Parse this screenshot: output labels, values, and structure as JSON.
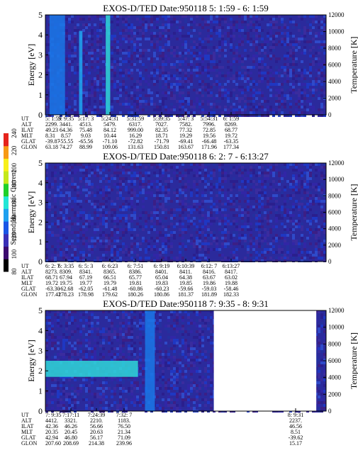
{
  "chart_data": [
    {
      "type": "heatmap",
      "title": "EXOS-D/TED   Date:950118  5: 1:59 - 6: 1:59",
      "ylabel": "Energy [eV]",
      "y2label": "Temperature [K]",
      "ylim": [
        0,
        5
      ],
      "y2lim": [
        0,
        12000
      ],
      "yticks": [
        "0",
        "1",
        "2",
        "3",
        "4",
        "5"
      ],
      "y2ticks": [
        "0",
        "2000",
        "4000",
        "6000",
        "8000",
        "10000",
        "12000"
      ],
      "row_labels": [
        "UT",
        "ALT",
        "ILAT",
        "MLT",
        "GLAT",
        "GLON"
      ],
      "columns": [
        [
          "5: 1:59",
          "2299.",
          "49.23",
          "8.31",
          "-39.87",
          "63.18"
        ],
        [
          "5: 9:35",
          "3441.",
          "64.36",
          "8.57",
          "-55.55",
          "74.27"
        ],
        [
          "5:17: 3",
          "4513.",
          "75.48",
          "9.03",
          "-65.56",
          "88.99"
        ],
        [
          "5:24:31",
          "5479.",
          "84.12",
          "10.44",
          "-71.10",
          "109.06"
        ],
        [
          "5:31:59",
          "6317.",
          "999.00",
          "16.29",
          "-72.82",
          "131.63"
        ],
        [
          "5:39:35",
          "7027.",
          "82.35",
          "18.71",
          "-71.79",
          "150.81"
        ],
        [
          "5:47: 3",
          "7582.",
          "77.32",
          "19.29",
          "-69.41",
          "163.67"
        ],
        [
          "5:54:31",
          "7996.",
          "72.85",
          "19.56",
          "-66.48",
          "171.96"
        ],
        [
          "6: 1:59",
          "8269.",
          "68.77",
          "19.72",
          "-63.35",
          "177.34"
        ]
      ],
      "features": [
        {
          "x_frac": 0.015,
          "width_frac": 0.055,
          "energy_top": 5.0,
          "level": 0.55
        },
        {
          "x_frac": 0.12,
          "width_frac": 0.012,
          "energy_top": 4.2,
          "level": 0.7
        },
        {
          "x_frac": 0.215,
          "width_frac": 0.016,
          "energy_top": 5.0,
          "level": 0.75
        }
      ]
    },
    {
      "type": "heatmap",
      "title": "EXOS-D/TED   Date:950118  6: 2: 7 - 6:13:27",
      "ylabel": "Energy [eV]",
      "y2label": "Temperature [K]",
      "ylim": [
        0,
        5
      ],
      "y2lim": [
        0,
        12000
      ],
      "yticks": [
        "0",
        "1",
        "2",
        "3",
        "4",
        "5"
      ],
      "y2ticks": [
        "0",
        "2000",
        "4000",
        "6000",
        "8000",
        "10000",
        "12000"
      ],
      "row_labels": [
        "UT",
        "ALT",
        "ILAT",
        "MLT",
        "GLAT",
        "GLON"
      ],
      "columns": [
        [
          "6: 2: 7",
          "8273.",
          "68.71",
          "19.72",
          "-63.30",
          "177.42"
        ],
        [
          "6: 3:35",
          "8309.",
          "67.94",
          "19.75",
          "-62.68",
          "178.23"
        ],
        [
          "6: 5: 3",
          "8341.",
          "67.19",
          "19.77",
          "-62.05",
          "178.98"
        ],
        [
          "6: 6:23",
          "8365.",
          "66.51",
          "19.79",
          "-61.48",
          "179.62"
        ],
        [
          "6: 7:51",
          "8386.",
          "65.77",
          "19.81",
          "-60.86",
          "180.26"
        ],
        [
          "6: 9:19",
          "8401.",
          "65.04",
          "19.83",
          "-60.23",
          "180.86"
        ],
        [
          "6:10:39",
          "8411.",
          "64.38",
          "19.85",
          "-59.66",
          "181.37"
        ],
        [
          "6:12: 7",
          "8416.",
          "63.67",
          "19.86",
          "-59.03",
          "181.89"
        ],
        [
          "6:13:27",
          "8417.",
          "63.02",
          "19.88",
          "-58.46",
          "182.33"
        ]
      ],
      "features": []
    },
    {
      "type": "heatmap",
      "title": "EXOS-D/TED   Date:950118  7: 9:35 - 8: 9:31",
      "ylabel": "Energy [eV]",
      "y2label": "Temperature [K]",
      "ylim": [
        0,
        5
      ],
      "y2lim": [
        0,
        12000
      ],
      "yticks": [
        "0",
        "1",
        "2",
        "3",
        "4",
        "5"
      ],
      "y2ticks": [
        "0",
        "2000",
        "4000",
        "6000",
        "8000",
        "10000",
        "12000"
      ],
      "row_labels": [
        "UT",
        "ALT",
        "ILAT",
        "MLT",
        "GLAT",
        "GLON"
      ],
      "columns": [
        [
          "7: 9:35",
          "4412.",
          "42.36",
          "20.35",
          "42.94",
          "207.60"
        ],
        [
          "7:17:11",
          "3321.",
          "46.26",
          "20.45",
          "46.80",
          "208.69"
        ],
        [
          "7:24:39",
          "2210.",
          "56.66",
          "20.63",
          "56.17",
          "214.38"
        ],
        [
          "7:32: 7",
          "1183.",
          "76.50",
          "21.34",
          "71.09",
          "239.96"
        ],
        [
          "8: 9:31",
          "2237.",
          "46.56",
          "8.51",
          "-39.62",
          "15.17"
        ]
      ],
      "gaps": [
        [
          0.6,
          0.965
        ]
      ],
      "features": [
        {
          "x_frac": 0.0,
          "width_frac": 0.33,
          "energy_bottom": 1.7,
          "energy_top": 2.5,
          "level": 0.75
        },
        {
          "x_frac": 0.355,
          "width_frac": 0.035,
          "energy_top": 5.0,
          "level": 0.6
        }
      ]
    }
  ],
  "colorbar": {
    "label": "Second Harmonic Current",
    "ticks": [
      "80",
      "100",
      "120",
      "140",
      "160",
      "180",
      "200",
      "220",
      "240"
    ],
    "colors": [
      "#000000",
      "#3b0a6e",
      "#3a2fb6",
      "#1a56e6",
      "#1ea0ef",
      "#22e6d6",
      "#1fd02a",
      "#c4e81a",
      "#f7ef1a",
      "#f79a14",
      "#e5241c"
    ]
  }
}
